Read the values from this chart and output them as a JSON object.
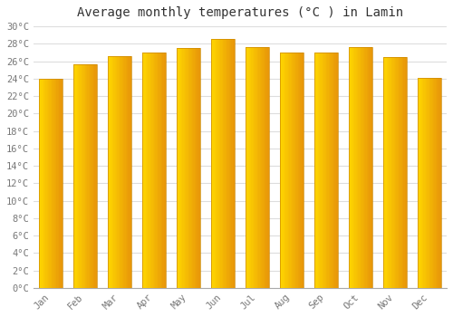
{
  "title": "Average monthly temperatures (°C ) in Lamin",
  "months": [
    "Jan",
    "Feb",
    "Mar",
    "Apr",
    "May",
    "Jun",
    "Jul",
    "Aug",
    "Sep",
    "Oct",
    "Nov",
    "Dec"
  ],
  "values": [
    24.0,
    25.6,
    26.6,
    27.0,
    27.5,
    28.5,
    27.6,
    27.0,
    27.0,
    27.6,
    26.5,
    24.1
  ],
  "ylim": [
    0,
    30
  ],
  "yticks": [
    0,
    2,
    4,
    6,
    8,
    10,
    12,
    14,
    16,
    18,
    20,
    22,
    24,
    26,
    28,
    30
  ],
  "bar_color_main": "#FFA500",
  "bar_color_left": "#FFD700",
  "bar_color_right": "#E8960A",
  "background_color": "#FFFFFF",
  "plot_bg_color": "#FFFFFF",
  "grid_color": "#DDDDDD",
  "title_fontsize": 10,
  "tick_fontsize": 7.5,
  "tick_color": "#777777",
  "font_family": "monospace"
}
